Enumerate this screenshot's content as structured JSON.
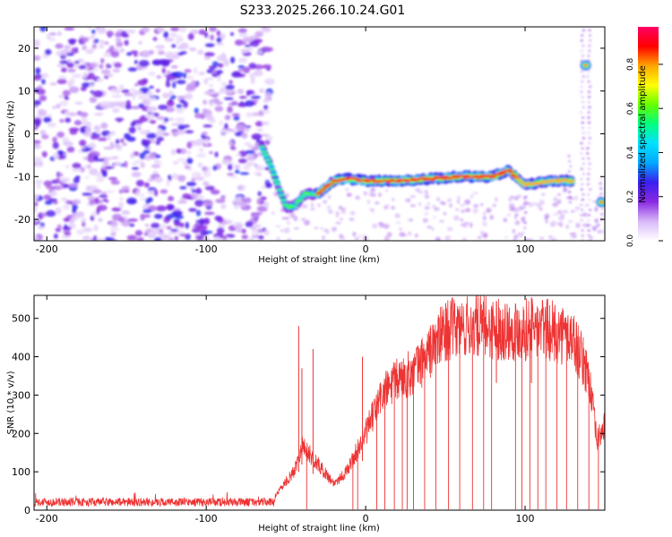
{
  "title": "S233.2025.266.10.24.G01",
  "chart_data": [
    {
      "type": "heatmap",
      "xlabel": "Height of straight line (km)",
      "ylabel": "Frequency (Hz)",
      "xlim": [
        -208,
        150
      ],
      "ylim": [
        -25,
        25
      ],
      "xticks": [
        -200,
        -100,
        0,
        100
      ],
      "yticks": [
        -20,
        -10,
        0,
        10,
        20
      ],
      "colorbar": {
        "label": "Normalized spectral amplitude",
        "range": [
          0,
          0.97
        ],
        "ticks": [
          "0.0",
          "0.2",
          "0.4",
          "0.6",
          "0.8"
        ],
        "colors": [
          "#ffffff",
          "#d8b8f8",
          "#8a2be2",
          "#3a1ef0",
          "#00a8ff",
          "#00e0ff",
          "#00ff7f",
          "#66ff00",
          "#ffff00",
          "#ffa500",
          "#ff0000",
          "#ff0066"
        ]
      },
      "ridge": [
        {
          "x": -65,
          "y": -3
        },
        {
          "x": -60,
          "y": -7
        },
        {
          "x": -55,
          "y": -12
        },
        {
          "x": -50,
          "y": -17
        },
        {
          "x": -45,
          "y": -17
        },
        {
          "x": -38,
          "y": -14
        },
        {
          "x": -30,
          "y": -14
        },
        {
          "x": -20,
          "y": -11
        },
        {
          "x": -10,
          "y": -10.5
        },
        {
          "x": 0,
          "y": -11
        },
        {
          "x": 20,
          "y": -11
        },
        {
          "x": 40,
          "y": -10.5
        },
        {
          "x": 60,
          "y": -10
        },
        {
          "x": 80,
          "y": -10
        },
        {
          "x": 90,
          "y": -8.5
        },
        {
          "x": 100,
          "y": -12
        },
        {
          "x": 115,
          "y": -11
        },
        {
          "x": 130,
          "y": -11
        },
        {
          "x": 138,
          "y": 16
        },
        {
          "x": 148,
          "y": -16
        }
      ]
    },
    {
      "type": "line",
      "xlabel": "Height of straight line (km)",
      "ylabel": "SNR (10 * v/v)",
      "xlim": [
        -208,
        150
      ],
      "ylim": [
        0,
        560
      ],
      "xticks": [
        -200,
        -100,
        0,
        100
      ],
      "yticks": [
        0,
        100,
        200,
        300,
        400,
        500
      ],
      "line_color": "#ee3333",
      "envelope": [
        {
          "x": -208,
          "snr": 18
        },
        {
          "x": -150,
          "snr": 20
        },
        {
          "x": -100,
          "snr": 20
        },
        {
          "x": -60,
          "snr": 22
        },
        {
          "x": -45,
          "snr": 100
        },
        {
          "x": -40,
          "snr": 170
        },
        {
          "x": -30,
          "snr": 120
        },
        {
          "x": -20,
          "snr": 70
        },
        {
          "x": -12,
          "snr": 100
        },
        {
          "x": 0,
          "snr": 200
        },
        {
          "x": 10,
          "snr": 300
        },
        {
          "x": 20,
          "snr": 340
        },
        {
          "x": 30,
          "snr": 360
        },
        {
          "x": 40,
          "snr": 410
        },
        {
          "x": 50,
          "snr": 470
        },
        {
          "x": 70,
          "snr": 480
        },
        {
          "x": 90,
          "snr": 470
        },
        {
          "x": 110,
          "snr": 475
        },
        {
          "x": 130,
          "snr": 450
        },
        {
          "x": 140,
          "snr": 350
        },
        {
          "x": 145,
          "snr": 180
        },
        {
          "x": 150,
          "snr": 220
        }
      ],
      "spikes": [
        {
          "x": -42,
          "snr": 480
        },
        {
          "x": -40,
          "snr": 370
        },
        {
          "x": -33,
          "snr": 420
        },
        {
          "x": -2,
          "snr": 400
        },
        {
          "x": 82,
          "snr": 545
        },
        {
          "x": 104,
          "snr": 555
        }
      ],
      "dropouts": [
        -37,
        -8,
        -5,
        7,
        12,
        18,
        23,
        26,
        30,
        37,
        44,
        52,
        59,
        67,
        74,
        79,
        94,
        98,
        103,
        108,
        113,
        120,
        126,
        133,
        140,
        146
      ]
    }
  ]
}
